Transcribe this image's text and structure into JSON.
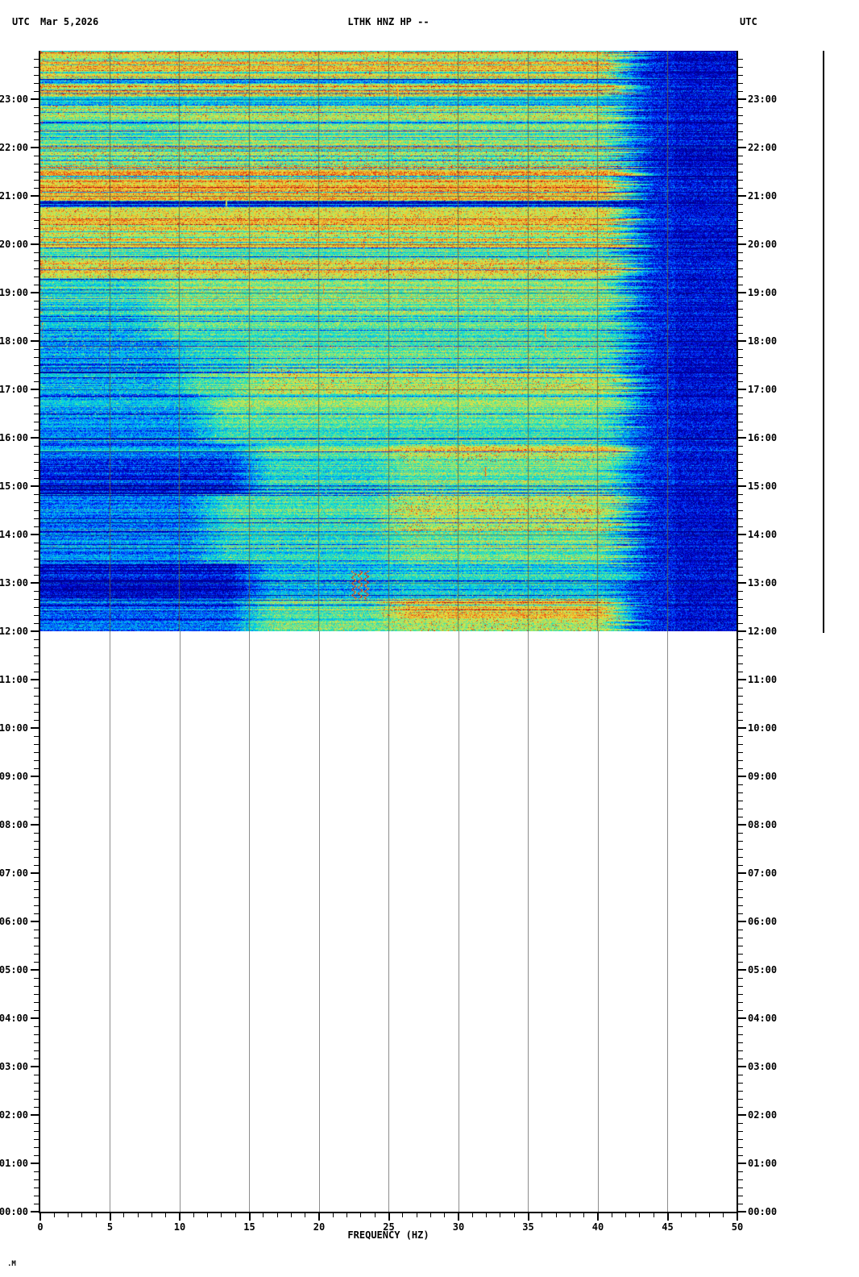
{
  "header": {
    "left_utc": "UTC",
    "date": "Mar 5,2026",
    "title": "LTHK HNZ HP --",
    "right_utc": "UTC"
  },
  "footer": {
    "mark": ".M"
  },
  "chart_data": {
    "type": "heatmap",
    "title": "LTHK HNZ HP --",
    "xlabel": "FREQUENCY (HZ)",
    "xlim": [
      0,
      50
    ],
    "x_tick_labels": [
      "0",
      "5",
      "10",
      "15",
      "20",
      "25",
      "30",
      "35",
      "40",
      "45",
      "50"
    ],
    "x_minor_step_hz": 1,
    "y_axis_unit": "UTC",
    "y_top_time": "24:00",
    "y_bottom_time": "00:00",
    "y_minor_step_min": 10,
    "left_time_labels": [
      "23:00",
      "22:00",
      "21:00",
      "20:00",
      "19:00",
      "18:00",
      "17:00",
      "16:00",
      "15:00",
      "14:00",
      "13:00",
      "12:00",
      "11:00",
      "10:00",
      "09:00",
      "08:00",
      "07:00",
      "06:00",
      "05:00",
      "04:00",
      "03:00",
      "02:00",
      "01:00",
      "00:00"
    ],
    "right_time_labels": [
      "23:00",
      "22:00",
      "21:00",
      "20:00",
      "19:00",
      "18:00",
      "17:00",
      "16:00",
      "15:00",
      "14:00",
      "13:00",
      "12:00",
      "11:00",
      "10:00",
      "09:00",
      "08:00",
      "07:00",
      "06:00",
      "05:00",
      "04:00",
      "03:00",
      "02:00",
      "01:00",
      "00:00"
    ],
    "data_coverage": {
      "from": "12:00",
      "to": "24:00",
      "empty_below": "12:00"
    },
    "right_reference_line": {
      "from": "24:00",
      "to": "12:00"
    },
    "grid": {
      "vertical_every_hz": 5,
      "color": "#8c8c8c",
      "color_over_data": "rgba(100,100,58,0.85)",
      "hour_line_over_data": "rgba(10,10,70,0.40)"
    },
    "axis_color": "#000000",
    "palette": [
      [
        0.0,
        "#000082"
      ],
      [
        0.1,
        "#0000c8"
      ],
      [
        0.2,
        "#0032ff"
      ],
      [
        0.3,
        "#0096ff"
      ],
      [
        0.4,
        "#00d2e6"
      ],
      [
        0.5,
        "#28e6b4"
      ],
      [
        0.58,
        "#82e682"
      ],
      [
        0.66,
        "#c8e650"
      ],
      [
        0.74,
        "#ebe13c"
      ],
      [
        0.82,
        "#f5aa28"
      ],
      [
        0.9,
        "#f06419"
      ],
      [
        0.96,
        "#dc2814"
      ],
      [
        1.0,
        "#a00014"
      ]
    ],
    "bands": [
      {
        "t0": "24:00",
        "t1": "23:26",
        "zones": [
          [
            0,
            40,
            0.74
          ]
        ]
      },
      {
        "t0": "23:26",
        "t1": "23:19",
        "zones": [
          [
            0,
            40,
            0.35
          ]
        ]
      },
      {
        "t0": "23:19",
        "t1": "23:03",
        "zones": [
          [
            0,
            40,
            0.7
          ]
        ]
      },
      {
        "t0": "23:03",
        "t1": "22:52",
        "zones": [
          [
            0,
            40,
            0.38
          ]
        ]
      },
      {
        "t0": "22:52",
        "t1": "22:38",
        "zones": [
          [
            0,
            40,
            0.62
          ]
        ]
      },
      {
        "t0": "22:38",
        "t1": "22:04",
        "zones": [
          [
            0,
            10,
            0.5
          ],
          [
            10,
            40,
            0.56
          ]
        ]
      },
      {
        "t0": "22:04",
        "t1": "21:38",
        "zones": [
          [
            0,
            40,
            0.63
          ]
        ]
      },
      {
        "t0": "21:38",
        "t1": "20:54",
        "zones": [
          [
            0,
            40,
            0.75
          ]
        ]
      },
      {
        "t0": "20:54",
        "t1": "20:46",
        "zones": [
          [
            0,
            43,
            0.2
          ]
        ]
      },
      {
        "t0": "20:46",
        "t1": "19:56",
        "zones": [
          [
            0,
            40,
            0.7
          ]
        ]
      },
      {
        "t0": "19:56",
        "t1": "19:42",
        "zones": [
          [
            0,
            40,
            0.52
          ]
        ]
      },
      {
        "t0": "19:42",
        "t1": "19:18",
        "zones": [
          [
            0,
            40,
            0.66
          ]
        ]
      },
      {
        "t0": "19:18",
        "t1": "18:34",
        "zones": [
          [
            0,
            8,
            0.42
          ],
          [
            8,
            40,
            0.56
          ]
        ]
      },
      {
        "t0": "18:34",
        "t1": "18:02",
        "zones": [
          [
            0,
            8,
            0.36
          ],
          [
            8,
            40,
            0.5
          ]
        ]
      },
      {
        "t0": "18:02",
        "t1": "17:26",
        "zones": [
          [
            0,
            10,
            0.34
          ],
          [
            10,
            15,
            0.46
          ],
          [
            15,
            40,
            0.55
          ]
        ]
      },
      {
        "t0": "17:26",
        "t1": "16:54",
        "zones": [
          [
            0,
            10,
            0.34
          ],
          [
            10,
            15,
            0.5
          ],
          [
            15,
            40,
            0.63
          ]
        ]
      },
      {
        "t0": "16:54",
        "t1": "16:20",
        "zones": [
          [
            0,
            12,
            0.32
          ],
          [
            12,
            40,
            0.55
          ]
        ]
      },
      {
        "t0": "16:20",
        "t1": "15:52",
        "zones": [
          [
            0,
            12,
            0.28
          ],
          [
            12,
            40,
            0.47
          ]
        ]
      },
      {
        "t0": "15:52",
        "t1": "15:30",
        "zones": [
          [
            0,
            15,
            0.24
          ],
          [
            15,
            25,
            0.48
          ],
          [
            25,
            40,
            0.62
          ]
        ]
      },
      {
        "t0": "15:30",
        "t1": "14:50",
        "zones": [
          [
            0,
            15,
            0.12
          ],
          [
            15,
            25,
            0.42
          ],
          [
            25,
            40,
            0.52
          ]
        ]
      },
      {
        "t0": "14:50",
        "t1": "14:02",
        "zones": [
          [
            0,
            12,
            0.28
          ],
          [
            12,
            25,
            0.5
          ],
          [
            25,
            40,
            0.65
          ]
        ]
      },
      {
        "t0": "14:02",
        "t1": "13:24",
        "zones": [
          [
            0,
            12,
            0.3
          ],
          [
            12,
            25,
            0.46
          ],
          [
            25,
            40,
            0.56
          ]
        ]
      },
      {
        "t0": "13:24",
        "t1": "12:40",
        "zones": [
          [
            0,
            15,
            0.1
          ],
          [
            15,
            25,
            0.36
          ],
          [
            25,
            40,
            0.42
          ]
        ]
      },
      {
        "t0": "12:40",
        "t1": "12:13",
        "zones": [
          [
            0,
            15,
            0.22
          ],
          [
            15,
            25,
            0.5
          ],
          [
            25,
            40,
            0.74
          ]
        ]
      },
      {
        "t0": "12:13",
        "t1": "12:00",
        "zones": [
          [
            0,
            15,
            0.26
          ],
          [
            15,
            25,
            0.55
          ],
          [
            25,
            40,
            0.62
          ]
        ]
      }
    ],
    "right_falloff": {
      "start_hz": 40.8,
      "width_hz": 2.8,
      "level": 0.15,
      "deep_start_hz": 45.5,
      "deep_level": 0.115,
      "edge_jitter_hz": 1.2
    },
    "events": [
      {
        "hz": 25.6,
        "t0": "23:12",
        "t1": "22:59",
        "level": 0.88
      },
      {
        "hz": 13.3,
        "t0": "20:55",
        "t1": "20:44",
        "level": 0.8
      },
      {
        "hz": 36.4,
        "t0": "19:57",
        "t1": "19:46",
        "level": 0.95
      },
      {
        "hz": 20.3,
        "t0": "19:12",
        "t1": "18:58",
        "level": 0.9
      },
      {
        "hz": 36.2,
        "t0": "18:20",
        "t1": "18:04",
        "level": 0.92
      },
      {
        "hz": 31.9,
        "t0": "15:24",
        "t1": "15:12",
        "level": 0.95
      },
      {
        "hz": 22.9,
        "t0": "13:15",
        "t1": "12:40",
        "level": 0.96,
        "wiggle": true
      }
    ],
    "texture": {
      "row_dark_prob": 0.1,
      "row_dark_delta": -0.3,
      "row_bright_prob": 0.08,
      "row_bright_delta": 0.15,
      "row_jitter": 0.1,
      "pixel_noise": 0.27,
      "speckle_prob": 0.05,
      "speckle_level": 0.97,
      "accent_speckle_prob": 0.022,
      "left_edge_speckle_prob": 0.12
    }
  }
}
